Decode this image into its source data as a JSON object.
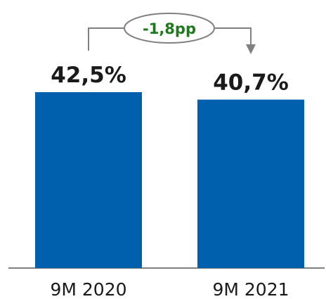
{
  "chart_data": {
    "type": "bar",
    "categories": [
      "9M 2020",
      "9M 2021"
    ],
    "values": [
      42.5,
      40.7
    ],
    "data_labels": [
      "42,5%",
      "40,7%"
    ],
    "ylim": [
      0,
      50
    ],
    "grid": false,
    "bar_color": "#0060ad",
    "annotation": {
      "text": "-1,8pp",
      "color": "#1f7a1f",
      "connector_color": "#808080"
    }
  }
}
